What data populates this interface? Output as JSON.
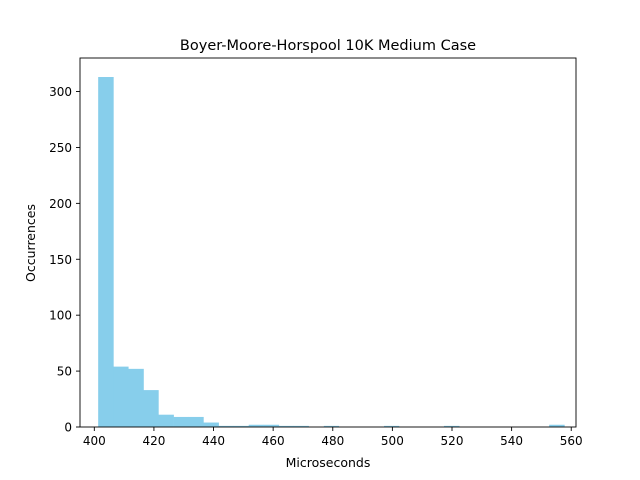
{
  "chart_data": {
    "type": "bar",
    "subtype": "histogram",
    "title": "Boyer-Moore-Horspool 10K Medium Case",
    "xlabel": "Microseconds",
    "ylabel": "Occurrences",
    "xlim": [
      395.2,
      561.6
    ],
    "ylim": [
      0,
      330
    ],
    "xticks": [
      400,
      420,
      440,
      460,
      480,
      500,
      520,
      540,
      560
    ],
    "yticks": [
      0,
      50,
      100,
      150,
      200,
      250,
      300
    ],
    "bar_color": "#87ceeb",
    "bins": [
      {
        "x0": 401.3,
        "x1": 406.4,
        "count": 313
      },
      {
        "x0": 406.4,
        "x1": 411.4,
        "count": 54
      },
      {
        "x0": 411.4,
        "x1": 416.5,
        "count": 52
      },
      {
        "x0": 416.5,
        "x1": 421.5,
        "count": 33
      },
      {
        "x0": 421.5,
        "x1": 426.6,
        "count": 11
      },
      {
        "x0": 426.6,
        "x1": 431.6,
        "count": 9
      },
      {
        "x0": 431.6,
        "x1": 436.6,
        "count": 9
      },
      {
        "x0": 436.6,
        "x1": 441.7,
        "count": 4
      },
      {
        "x0": 441.7,
        "x1": 446.7,
        "count": 1
      },
      {
        "x0": 446.7,
        "x1": 451.8,
        "count": 1
      },
      {
        "x0": 451.8,
        "x1": 456.8,
        "count": 2
      },
      {
        "x0": 456.8,
        "x1": 461.9,
        "count": 2
      },
      {
        "x0": 461.9,
        "x1": 466.9,
        "count": 1
      },
      {
        "x0": 466.9,
        "x1": 471.9,
        "count": 1
      },
      {
        "x0": 471.9,
        "x1": 477.0,
        "count": 0
      },
      {
        "x0": 477.0,
        "x1": 482.0,
        "count": 1
      },
      {
        "x0": 482.0,
        "x1": 487.1,
        "count": 0
      },
      {
        "x0": 487.1,
        "x1": 492.1,
        "count": 0
      },
      {
        "x0": 492.1,
        "x1": 497.2,
        "count": 0
      },
      {
        "x0": 497.2,
        "x1": 502.2,
        "count": 1
      },
      {
        "x0": 502.2,
        "x1": 507.2,
        "count": 0
      },
      {
        "x0": 507.2,
        "x1": 512.3,
        "count": 0
      },
      {
        "x0": 512.3,
        "x1": 517.3,
        "count": 0
      },
      {
        "x0": 517.3,
        "x1": 522.4,
        "count": 1
      },
      {
        "x0": 522.4,
        "x1": 527.4,
        "count": 0
      },
      {
        "x0": 527.4,
        "x1": 532.5,
        "count": 0
      },
      {
        "x0": 532.5,
        "x1": 537.5,
        "count": 0
      },
      {
        "x0": 537.5,
        "x1": 542.5,
        "count": 0
      },
      {
        "x0": 542.5,
        "x1": 547.6,
        "count": 0
      },
      {
        "x0": 547.6,
        "x1": 552.6,
        "count": 0
      },
      {
        "x0": 552.6,
        "x1": 557.7,
        "count": 2
      }
    ],
    "grid": false,
    "legend": "none"
  }
}
